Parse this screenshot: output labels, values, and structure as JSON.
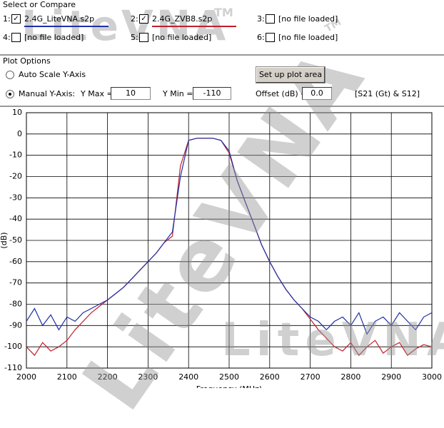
{
  "compare": {
    "title": "Select or Compare",
    "slots": [
      {
        "number": "1:",
        "label": "2.4G_LiteVNA.s2p",
        "checked": true,
        "color": "#1f2fa8"
      },
      {
        "number": "2:",
        "label": "2.4G_ZVB8.s2p",
        "checked": true,
        "color": "#c0202a"
      },
      {
        "number": "3:",
        "label": "[no file loaded]",
        "checked": false
      },
      {
        "number": "4:",
        "label": "[no file loaded]",
        "checked": false
      },
      {
        "number": "5:",
        "label": "[no file loaded]",
        "checked": false
      },
      {
        "number": "6:",
        "label": "[no file loaded]",
        "checked": false
      }
    ]
  },
  "plot_options": {
    "title": "Plot Options",
    "auto_scale": {
      "label": "Auto Scale Y-Axis",
      "selected": false
    },
    "manual": {
      "label": "Manual Y-Axis:",
      "selected": true
    },
    "button": "Set up plot area",
    "fields": [
      {
        "label": "Y Max =",
        "value": "10"
      },
      {
        "label": "Y Min =",
        "value": "-110"
      },
      {
        "label": "Offset (dB) =",
        "value": "0.0"
      }
    ],
    "note": "[S21 (Gt) & S12]"
  },
  "watermark": {
    "text": "LiteVNA",
    "mark": "TM"
  },
  "chart_data": {
    "type": "line",
    "x_label": "Frequency (MHz)",
    "y_label": "(dB)",
    "grid": true,
    "xlim": [
      2000,
      3000
    ],
    "ylim": [
      -110,
      10
    ],
    "xticks": [
      2000,
      2100,
      2200,
      2300,
      2400,
      2500,
      2600,
      2700,
      2800,
      2900,
      3000
    ],
    "yticks": [
      10,
      0,
      -10,
      -20,
      -30,
      -40,
      -50,
      -60,
      -70,
      -80,
      -90,
      -100,
      -110
    ],
    "x": [
      2000,
      2020,
      2040,
      2060,
      2080,
      2100,
      2120,
      2140,
      2160,
      2180,
      2200,
      2220,
      2240,
      2260,
      2280,
      2300,
      2320,
      2340,
      2360,
      2380,
      2400,
      2420,
      2440,
      2460,
      2480,
      2500,
      2520,
      2540,
      2560,
      2580,
      2600,
      2620,
      2640,
      2660,
      2680,
      2700,
      2720,
      2740,
      2760,
      2780,
      2800,
      2820,
      2840,
      2860,
      2880,
      2900,
      2920,
      2940,
      2960,
      2980,
      3000
    ],
    "series": [
      {
        "name": "2.4G_ZVB8.s2p",
        "color": "#c0202a",
        "values": [
          -100,
          -104,
          -98,
          -102,
          -100,
          -97,
          -92,
          -88,
          -84,
          -81,
          -78,
          -75,
          -72,
          -68,
          -64,
          -60,
          -56,
          -51,
          -48,
          -15,
          -3,
          -2,
          -2,
          -2,
          -3,
          -9,
          -22,
          -32,
          -42,
          -52,
          -60,
          -67,
          -73,
          -78,
          -82,
          -87,
          -92,
          -96,
          -100,
          -102,
          -98,
          -104,
          -100,
          -97,
          -103,
          -100,
          -98,
          -104,
          -101,
          -99,
          -100
        ]
      },
      {
        "name": "2.4G_LiteVNA.s2p",
        "color": "#1f2fa8",
        "values": [
          -88,
          -82,
          -90,
          -85,
          -92,
          -86,
          -88,
          -84,
          -82,
          -80,
          -78,
          -75,
          -72,
          -68,
          -64,
          -60,
          -56,
          -51,
          -46,
          -20,
          -3,
          -2,
          -2,
          -2,
          -3,
          -8,
          -22,
          -32,
          -42,
          -52,
          -60,
          -67,
          -73,
          -78,
          -82,
          -86,
          -88,
          -92,
          -88,
          -86,
          -90,
          -84,
          -94,
          -88,
          -86,
          -90,
          -84,
          -88,
          -92,
          -86,
          -84
        ]
      }
    ]
  }
}
